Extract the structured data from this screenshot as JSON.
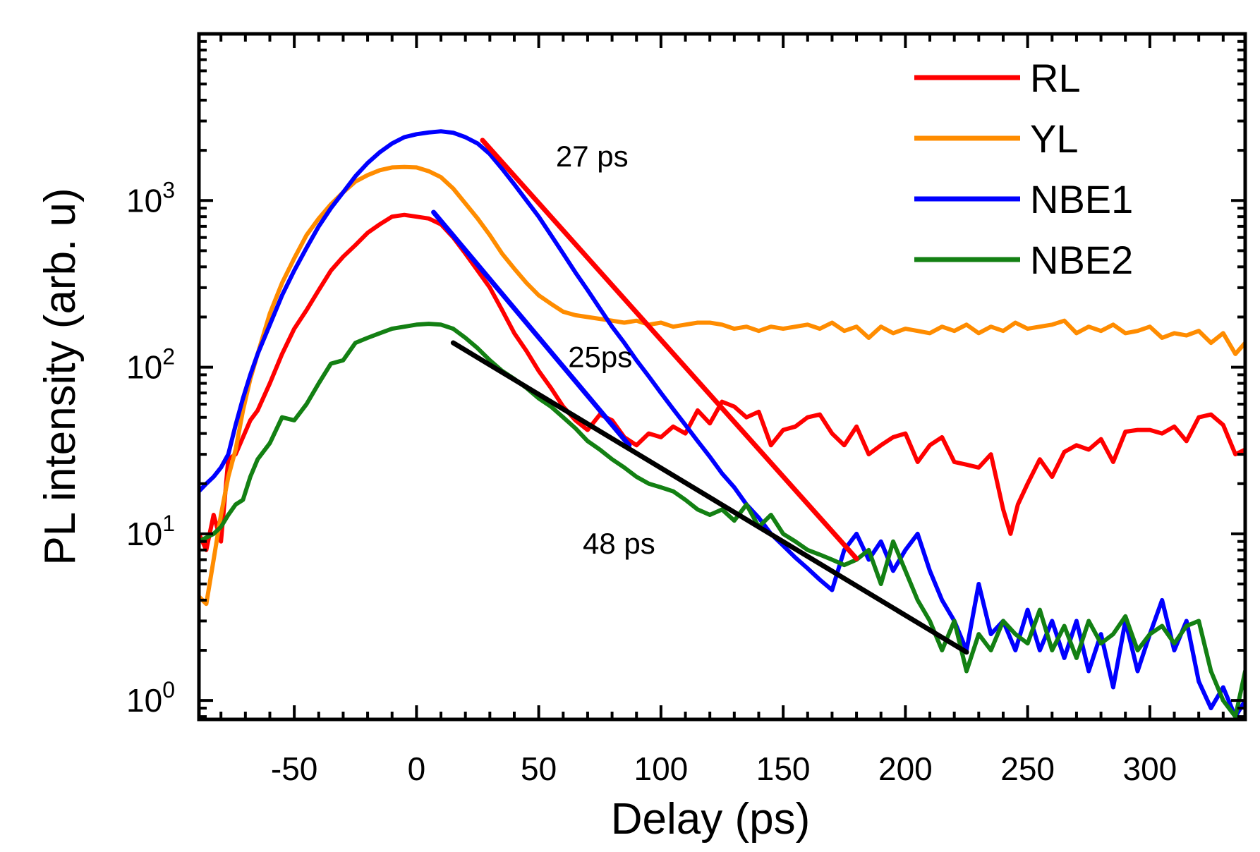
{
  "chart_data": {
    "type": "line",
    "title": "",
    "xlabel": "Delay (ps)",
    "ylabel": "PL intensity (arb. u)",
    "xlim": [
      -89,
      339
    ],
    "ylim": [
      0.77,
      10000
    ],
    "yscale": "log",
    "x_ticks": [
      -50,
      0,
      50,
      100,
      150,
      200,
      250,
      300
    ],
    "x_tick_labels": [
      "-50",
      "0",
      "50",
      "100",
      "150",
      "200",
      "250",
      "300"
    ],
    "y_ticks": [
      1,
      10,
      100,
      1000
    ],
    "y_tick_labels": [
      {
        "base": "10",
        "exp": "0"
      },
      {
        "base": "10",
        "exp": "1"
      },
      {
        "base": "10",
        "exp": "2"
      },
      {
        "base": "10",
        "exp": "3"
      }
    ],
    "legend_position": "top-right",
    "series": [
      {
        "name": "RL",
        "color": "#ff0000",
        "x": [
          -89,
          -86,
          -83,
          -80,
          -77,
          -74,
          -71,
          -68,
          -65,
          -60,
          -55,
          -50,
          -45,
          -40,
          -35,
          -30,
          -25,
          -20,
          -15,
          -10,
          -5,
          0,
          5,
          10,
          15,
          20,
          25,
          30,
          35,
          40,
          45,
          50,
          55,
          60,
          65,
          70,
          75,
          80,
          85,
          90,
          95,
          100,
          105,
          110,
          115,
          120,
          125,
          130,
          135,
          140,
          145,
          150,
          155,
          160,
          165,
          170,
          175,
          180,
          185,
          190,
          195,
          200,
          205,
          210,
          215,
          220,
          225,
          230,
          235,
          240,
          243,
          246,
          250,
          255,
          260,
          265,
          270,
          275,
          280,
          285,
          290,
          295,
          300,
          305,
          310,
          315,
          320,
          325,
          330,
          335,
          339
        ],
        "values": [
          10,
          8,
          13,
          9,
          28,
          30,
          38,
          48,
          55,
          80,
          120,
          170,
          220,
          290,
          380,
          460,
          540,
          640,
          720,
          800,
          820,
          800,
          780,
          720,
          600,
          480,
          380,
          300,
          220,
          160,
          125,
          95,
          75,
          58,
          48,
          42,
          52,
          48,
          38,
          34,
          40,
          38,
          44,
          40,
          55,
          46,
          62,
          58,
          50,
          54,
          34,
          42,
          44,
          50,
          52,
          40,
          34,
          44,
          30,
          34,
          38,
          40,
          27,
          34,
          38,
          27,
          26,
          25,
          30,
          14,
          10,
          15,
          20,
          28,
          22,
          31,
          34,
          32,
          37,
          27,
          41,
          42,
          42,
          40,
          44,
          36,
          50,
          52,
          45,
          30,
          32
        ]
      },
      {
        "name": "YL",
        "color": "#ff8c00",
        "x": [
          -89,
          -86,
          -83,
          -80,
          -77,
          -74,
          -71,
          -68,
          -65,
          -60,
          -55,
          -50,
          -45,
          -40,
          -35,
          -30,
          -25,
          -20,
          -15,
          -10,
          -5,
          0,
          5,
          10,
          15,
          20,
          25,
          30,
          35,
          40,
          45,
          50,
          55,
          60,
          65,
          70,
          75,
          80,
          85,
          90,
          95,
          100,
          105,
          110,
          115,
          120,
          125,
          130,
          135,
          140,
          145,
          150,
          155,
          160,
          165,
          170,
          175,
          180,
          185,
          190,
          195,
          200,
          205,
          210,
          215,
          220,
          225,
          230,
          235,
          240,
          245,
          250,
          255,
          260,
          265,
          270,
          275,
          280,
          285,
          290,
          295,
          300,
          305,
          310,
          315,
          320,
          325,
          330,
          335,
          339
        ],
        "values": [
          4.2,
          3.8,
          7,
          13,
          22,
          32,
          55,
          85,
          120,
          210,
          320,
          450,
          620,
          780,
          950,
          1120,
          1300,
          1420,
          1520,
          1580,
          1590,
          1580,
          1500,
          1380,
          1180,
          960,
          780,
          620,
          480,
          390,
          320,
          270,
          240,
          215,
          205,
          200,
          195,
          190,
          185,
          190,
          180,
          185,
          175,
          180,
          185,
          185,
          180,
          170,
          175,
          165,
          175,
          170,
          175,
          180,
          170,
          185,
          165,
          175,
          150,
          175,
          160,
          170,
          165,
          160,
          175,
          165,
          180,
          160,
          175,
          165,
          185,
          170,
          175,
          180,
          190,
          160,
          175,
          165,
          180,
          160,
          165,
          175,
          150,
          160,
          155,
          165,
          140,
          160,
          120,
          140
        ]
      },
      {
        "name": "NBE1",
        "color": "#0000ff",
        "x": [
          -89,
          -86,
          -83,
          -80,
          -77,
          -74,
          -71,
          -68,
          -65,
          -60,
          -55,
          -50,
          -45,
          -40,
          -35,
          -30,
          -25,
          -20,
          -15,
          -10,
          -5,
          0,
          5,
          10,
          15,
          20,
          25,
          30,
          35,
          40,
          45,
          50,
          55,
          60,
          65,
          70,
          75,
          80,
          85,
          90,
          95,
          100,
          105,
          110,
          115,
          120,
          125,
          130,
          135,
          140,
          145,
          150,
          155,
          160,
          165,
          170,
          175,
          180,
          185,
          190,
          195,
          200,
          205,
          210,
          215,
          220,
          225,
          230,
          235,
          240,
          245,
          250,
          255,
          260,
          265,
          270,
          275,
          280,
          285,
          290,
          295,
          300,
          305,
          310,
          315,
          320,
          325,
          330,
          335,
          339
        ],
        "values": [
          18,
          20,
          22,
          25,
          30,
          45,
          65,
          90,
          120,
          180,
          270,
          380,
          520,
          700,
          900,
          1120,
          1400,
          1680,
          1950,
          2200,
          2400,
          2500,
          2560,
          2600,
          2550,
          2400,
          2200,
          1900,
          1550,
          1250,
          1000,
          800,
          620,
          480,
          370,
          290,
          225,
          175,
          140,
          110,
          88,
          70,
          56,
          45,
          36,
          29,
          23,
          19,
          15,
          12.5,
          10,
          8.5,
          7.2,
          6.2,
          5.3,
          4.6,
          8,
          10,
          7,
          9,
          6,
          8,
          10,
          6,
          4,
          3,
          2,
          5,
          2.5,
          3,
          2,
          3.5,
          2,
          3,
          1.8,
          3,
          1.5,
          2.5,
          1.2,
          3,
          1.5,
          2.5,
          4,
          2,
          3,
          1.3,
          0.9,
          1.2,
          0.8,
          1
        ]
      },
      {
        "name": "NBE2",
        "color": "#138013",
        "x": [
          -89,
          -86,
          -83,
          -80,
          -77,
          -74,
          -71,
          -68,
          -65,
          -60,
          -55,
          -50,
          -45,
          -40,
          -35,
          -30,
          -25,
          -20,
          -15,
          -10,
          -5,
          0,
          5,
          10,
          15,
          20,
          25,
          30,
          35,
          40,
          45,
          50,
          55,
          60,
          65,
          70,
          75,
          80,
          85,
          90,
          95,
          100,
          105,
          110,
          115,
          120,
          125,
          130,
          135,
          140,
          145,
          150,
          155,
          160,
          165,
          170,
          175,
          180,
          185,
          190,
          195,
          200,
          205,
          210,
          215,
          220,
          225,
          230,
          235,
          240,
          245,
          250,
          255,
          260,
          265,
          270,
          275,
          280,
          285,
          290,
          295,
          300,
          305,
          310,
          315,
          320,
          325,
          330,
          335,
          339
        ],
        "values": [
          9,
          9.5,
          10,
          11,
          13,
          15,
          16,
          22,
          28,
          35,
          50,
          48,
          60,
          80,
          105,
          110,
          140,
          150,
          160,
          170,
          175,
          180,
          182,
          180,
          170,
          150,
          130,
          110,
          95,
          85,
          75,
          65,
          58,
          50,
          43,
          36,
          32,
          28,
          25,
          22,
          20,
          19,
          18,
          16,
          14,
          13,
          14,
          12,
          15,
          11,
          13,
          10,
          9,
          8,
          7.5,
          7,
          6.5,
          7,
          8,
          5,
          9,
          6,
          4,
          3,
          2,
          3,
          1.5,
          2.5,
          2,
          3,
          2.5,
          2.2,
          3.5,
          2,
          2.8,
          1.8,
          3,
          2.2,
          2.5,
          3.2,
          2,
          2.5,
          2.8,
          2.2,
          2.8,
          3,
          1.5,
          1,
          0.8,
          1.5
        ]
      }
    ],
    "fits": [
      {
        "name": "RL fit",
        "color": "#ff0000",
        "x": [
          27,
          180
        ],
        "values": [
          2300,
          7.1
        ]
      },
      {
        "name": "NBE1 fit",
        "color": "#0000ff",
        "x": [
          7,
          87
        ],
        "values": [
          850,
          34
        ]
      },
      {
        "name": "NBE2 fit",
        "color": "#000000",
        "x": [
          15,
          225
        ],
        "values": [
          140,
          1.95
        ]
      }
    ],
    "annotations": [
      {
        "text": "27 ps",
        "x": 57,
        "y": 1600
      },
      {
        "text": "25ps",
        "x": 62,
        "y": 100
      },
      {
        "text": "48 ps",
        "x": 68,
        "y": 7.6
      }
    ]
  }
}
